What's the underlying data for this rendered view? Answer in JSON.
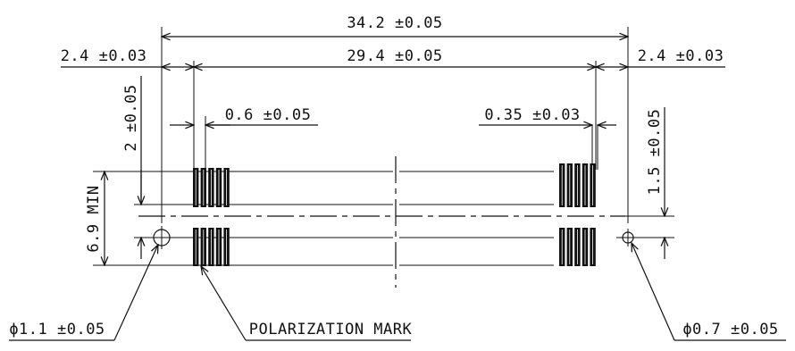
{
  "dimensions": {
    "overall_width": "34.2 ±0.05",
    "pitch_span": "29.4 ±0.05",
    "left_offset": "2.4 ±0.03",
    "right_offset": "2.4 ±0.03",
    "row_offset": "2 ±0.05",
    "pad_pitch": "0.6 ±0.05",
    "pad_width": "0.35 ±0.03",
    "right_hole_offset": "1.5 ±0.05",
    "min_depth": "6.9 MIN",
    "left_hole_dia": "ϕ1.1 ±0.05",
    "right_hole_dia": "ϕ0.7 ±0.05"
  },
  "labels": {
    "polarization_mark": "POLARIZATION MARK"
  }
}
